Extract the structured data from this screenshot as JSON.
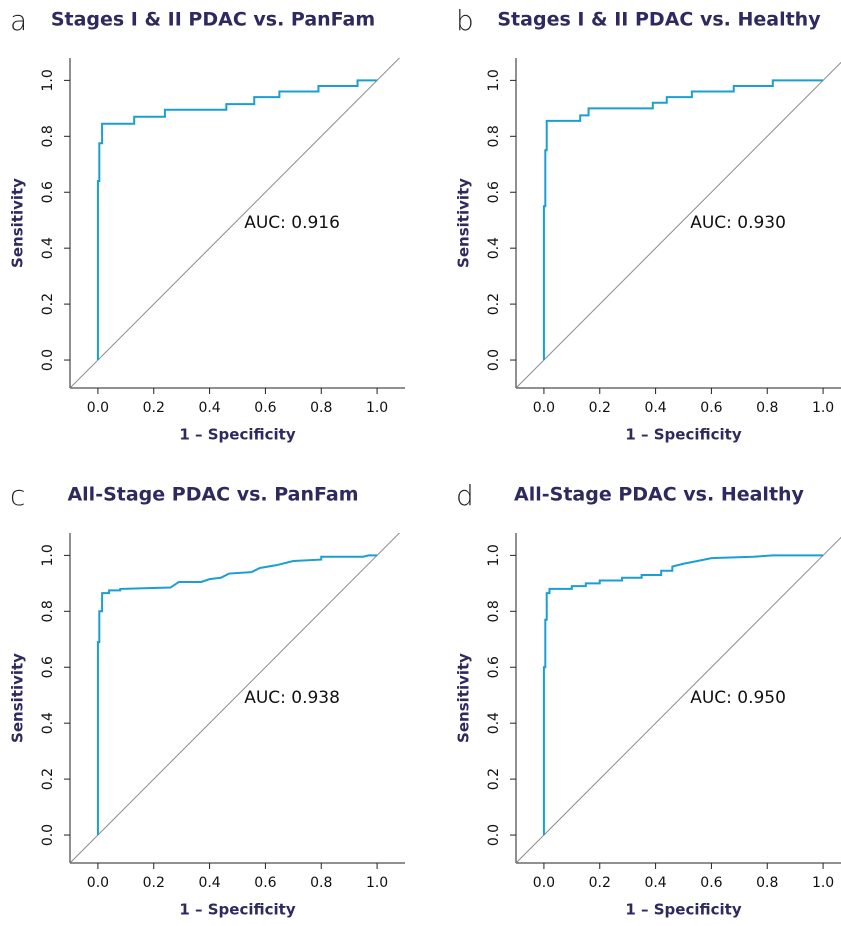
{
  "chart_data": [
    {
      "type": "line",
      "panel_label": "a",
      "title": "Stages I & II PDAC vs. PanFam",
      "xlabel": "1 – Specificity",
      "ylabel": "Sensitivity",
      "annotation": "AUC: 0.916",
      "color": "#1a9fd0",
      "diagonal": true,
      "xlim": [
        -0.1,
        1.1
      ],
      "ylim": [
        -0.1,
        1.08
      ],
      "xticks": [
        {
          "value": 0,
          "label": "0.0"
        },
        0.2,
        0.4,
        0.6,
        0.8,
        {
          "value": 1,
          "label": "1.0"
        }
      ],
      "yticks": [
        {
          "value": 0,
          "label": "0.0"
        },
        0.2,
        0.4,
        0.6,
        0.8,
        {
          "value": 1,
          "label": "1.0"
        }
      ],
      "x": [
        0,
        0,
        0.005,
        0.005,
        0.015,
        0.015,
        0.13,
        0.13,
        0.24,
        0.24,
        0.46,
        0.46,
        0.56,
        0.56,
        0.65,
        0.65,
        0.79,
        0.79,
        0.93,
        0.93,
        1.0
      ],
      "values": [
        0,
        0.64,
        0.64,
        0.775,
        0.775,
        0.845,
        0.845,
        0.87,
        0.87,
        0.895,
        0.895,
        0.915,
        0.915,
        0.94,
        0.94,
        0.96,
        0.96,
        0.98,
        0.98,
        1.0,
        1.0
      ]
    },
    {
      "type": "line",
      "panel_label": "b",
      "title": "Stages I & II PDAC vs. Healthy",
      "xlabel": "1 – Specificity",
      "ylabel": "Sensitivity",
      "annotation": "AUC: 0.930",
      "color": "#1a9fd0",
      "diagonal": true,
      "xlim": [
        -0.1,
        1.1
      ],
      "ylim": [
        -0.1,
        1.08
      ],
      "xticks": [
        {
          "value": 0,
          "label": "0.0"
        },
        0.2,
        0.4,
        0.6,
        0.8,
        {
          "value": 1,
          "label": "1.0"
        }
      ],
      "yticks": [
        {
          "value": 0,
          "label": "0.0"
        },
        0.2,
        0.4,
        0.6,
        0.8,
        {
          "value": 1,
          "label": "1.0"
        }
      ],
      "x": [
        0,
        0,
        0.005,
        0.005,
        0.01,
        0.01,
        0.13,
        0.13,
        0.16,
        0.16,
        0.39,
        0.39,
        0.44,
        0.44,
        0.53,
        0.53,
        0.68,
        0.68,
        0.82,
        0.82,
        1.0
      ],
      "values": [
        0,
        0.55,
        0.55,
        0.75,
        0.75,
        0.855,
        0.855,
        0.875,
        0.875,
        0.9,
        0.9,
        0.92,
        0.92,
        0.94,
        0.94,
        0.96,
        0.96,
        0.98,
        0.98,
        1.0,
        1.0
      ]
    },
    {
      "type": "line",
      "panel_label": "c",
      "title": "All-Stage PDAC vs. PanFam",
      "xlabel": "1 – Specificity",
      "ylabel": "Sensitivity",
      "annotation": "AUC: 0.938",
      "color": "#1a9fd0",
      "diagonal": true,
      "xlim": [
        -0.1,
        1.1
      ],
      "ylim": [
        -0.1,
        1.08
      ],
      "xticks": [
        {
          "value": 0,
          "label": "0.0"
        },
        0.2,
        0.4,
        0.6,
        0.8,
        {
          "value": 1,
          "label": "1.0"
        }
      ],
      "yticks": [
        {
          "value": 0,
          "label": "0.0"
        },
        0.2,
        0.4,
        0.6,
        0.8,
        {
          "value": 1,
          "label": "1.0"
        }
      ],
      "x": [
        0,
        0,
        0.005,
        0.005,
        0.015,
        0.015,
        0.04,
        0.04,
        0.08,
        0.08,
        0.26,
        0.29,
        0.37,
        0.4,
        0.44,
        0.47,
        0.55,
        0.58,
        0.64,
        0.7,
        0.8,
        0.8,
        0.95,
        0.97,
        1.0
      ],
      "values": [
        0,
        0.69,
        0.69,
        0.8,
        0.8,
        0.865,
        0.865,
        0.875,
        0.875,
        0.88,
        0.885,
        0.905,
        0.905,
        0.915,
        0.92,
        0.935,
        0.94,
        0.955,
        0.965,
        0.98,
        0.985,
        0.995,
        0.995,
        1.0,
        1.0
      ]
    },
    {
      "type": "line",
      "panel_label": "d",
      "title": "All-Stage PDAC vs. Healthy",
      "xlabel": "1 – Specificity",
      "ylabel": "Sensitivity",
      "annotation": "AUC: 0.950",
      "color": "#1a9fd0",
      "diagonal": true,
      "xlim": [
        -0.1,
        1.1
      ],
      "ylim": [
        -0.1,
        1.08
      ],
      "xticks": [
        {
          "value": 0,
          "label": "0.0"
        },
        0.2,
        0.4,
        0.6,
        0.8,
        {
          "value": 1,
          "label": "1.0"
        }
      ],
      "yticks": [
        {
          "value": 0,
          "label": "0.0"
        },
        0.2,
        0.4,
        0.6,
        0.8,
        {
          "value": 1,
          "label": "1.0"
        }
      ],
      "x": [
        0,
        0,
        0.005,
        0.005,
        0.01,
        0.01,
        0.02,
        0.02,
        0.1,
        0.1,
        0.15,
        0.15,
        0.2,
        0.2,
        0.28,
        0.28,
        0.35,
        0.35,
        0.42,
        0.42,
        0.46,
        0.46,
        0.5,
        0.55,
        0.6,
        0.75,
        0.82,
        1.0
      ],
      "values": [
        0,
        0.6,
        0.6,
        0.77,
        0.77,
        0.865,
        0.865,
        0.88,
        0.88,
        0.89,
        0.89,
        0.9,
        0.9,
        0.91,
        0.91,
        0.92,
        0.92,
        0.93,
        0.93,
        0.945,
        0.945,
        0.96,
        0.97,
        0.98,
        0.99,
        0.995,
        1.0,
        1.0
      ]
    }
  ]
}
